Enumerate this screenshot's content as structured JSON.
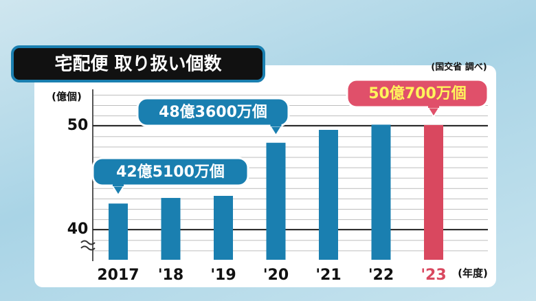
{
  "chart_data": {
    "type": "bar",
    "title": "宅配便 取り扱い個数",
    "source": "(国交省 調べ)",
    "y_label": "(億個)",
    "x_label": "(年度)",
    "categories": [
      "2017",
      "'18",
      "'19",
      "'20",
      "'21",
      "'22",
      "'23"
    ],
    "values": [
      42.51,
      43.05,
      43.25,
      48.36,
      49.6,
      50.1,
      50.07
    ],
    "value_labels": [
      "42億5100万個",
      null,
      null,
      "48億3600万個",
      null,
      null,
      "50億700万個"
    ],
    "colors": [
      "#1a7fb0",
      "#1a7fb0",
      "#1a7fb0",
      "#1a7fb0",
      "#1a7fb0",
      "#1a7fb0",
      "#d9485f"
    ],
    "ylim": [
      37.1,
      53.5
    ],
    "yticks": [
      40,
      50
    ]
  }
}
